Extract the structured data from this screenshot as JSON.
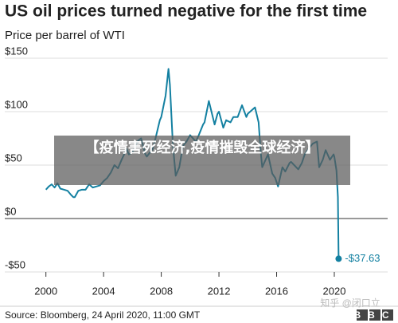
{
  "chart_data": {
    "type": "line",
    "title": "US oil prices turned negative for the first time",
    "subtitle": "Price per barrel of WTI",
    "x": [
      2000.0,
      2000.2,
      2000.4,
      2000.6,
      2000.8,
      2001.0,
      2001.25,
      2001.5,
      2001.75,
      2001.9,
      2002.0,
      2002.25,
      2002.5,
      2002.75,
      2003.0,
      2003.25,
      2003.5,
      2003.75,
      2004.0,
      2004.25,
      2004.5,
      2004.75,
      2005.0,
      2005.25,
      2005.6,
      2005.75,
      2006.0,
      2006.4,
      2006.6,
      2006.9,
      2007.0,
      2007.4,
      2007.6,
      2007.9,
      2008.0,
      2008.3,
      2008.5,
      2008.6,
      2008.8,
      2009.0,
      2009.25,
      2009.5,
      2009.75,
      2010.0,
      2010.4,
      2010.6,
      2010.9,
      2011.0,
      2011.3,
      2011.7,
      2011.9,
      2012.0,
      2012.3,
      2012.5,
      2012.8,
      2013.0,
      2013.3,
      2013.6,
      2013.9,
      2014.0,
      2014.5,
      2014.75,
      2014.9,
      2015.0,
      2015.4,
      2015.7,
      2015.9,
      2016.1,
      2016.4,
      2016.6,
      2016.9,
      2017.0,
      2017.5,
      2017.75,
      2017.95,
      2018.2,
      2018.5,
      2018.8,
      2018.95,
      2019.2,
      2019.4,
      2019.7,
      2019.95,
      2020.0,
      2020.15,
      2020.25,
      2020.3
    ],
    "series": [
      {
        "name": "WTI",
        "color": "#1380a1",
        "values": [
          27,
          30,
          32,
          29,
          33,
          28,
          27,
          26,
          22,
          20,
          20,
          26,
          27,
          27,
          32,
          29,
          30,
          31,
          35,
          38,
          43,
          50,
          47,
          55,
          65,
          60,
          62,
          73,
          75,
          60,
          58,
          65,
          75,
          92,
          95,
          115,
          140,
          125,
          70,
          40,
          48,
          68,
          72,
          78,
          72,
          78,
          88,
          90,
          110,
          88,
          98,
          100,
          85,
          92,
          90,
          95,
          95,
          106,
          95,
          98,
          104,
          90,
          62,
          48,
          60,
          42,
          38,
          30,
          48,
          44,
          52,
          53,
          46,
          52,
          60,
          65,
          70,
          72,
          48,
          55,
          64,
          55,
          60,
          58,
          45,
          20,
          -37.63
        ],
        "value_labels": [
          null,
          null,
          null,
          null,
          null,
          null,
          null,
          null,
          null,
          null,
          null,
          null,
          null,
          null,
          null,
          null,
          null,
          null,
          null,
          null,
          null,
          null,
          null,
          null,
          null,
          null,
          null,
          null,
          null,
          null,
          null,
          null,
          null,
          null,
          null,
          null,
          null,
          null,
          null,
          null,
          null,
          null,
          null,
          null,
          null,
          null,
          null,
          null,
          null,
          null,
          null,
          null,
          null,
          null,
          null,
          null,
          null,
          null,
          null,
          null,
          null,
          null,
          null,
          null,
          null,
          null,
          null,
          null,
          null,
          null,
          null,
          null,
          null,
          null,
          null,
          null,
          null,
          null,
          null,
          null,
          null,
          null,
          null,
          null,
          null,
          null,
          "-$37.63"
        ]
      }
    ],
    "xlim": [
      1999.3,
      2023.7
    ],
    "xticks": [
      2000,
      2004,
      2008,
      2012,
      2016,
      2020
    ],
    "ylim": [
      -50,
      150
    ],
    "yticks": [
      {
        "value": -50,
        "label": "-$50"
      },
      {
        "value": 0,
        "label": "$0"
      },
      {
        "value": 50,
        "label": "$50"
      },
      {
        "value": 100,
        "label": "$100"
      },
      {
        "value": 150,
        "label": "$150"
      }
    ],
    "grid": true,
    "source": "Source: Bloomberg, 24 April 2020, 11:00 GMT"
  },
  "overlay": {
    "headline": "【疫情害死经济,疫情摧毁全球经济】"
  },
  "watermark": "知乎 @闭口立",
  "logo": "BBC"
}
